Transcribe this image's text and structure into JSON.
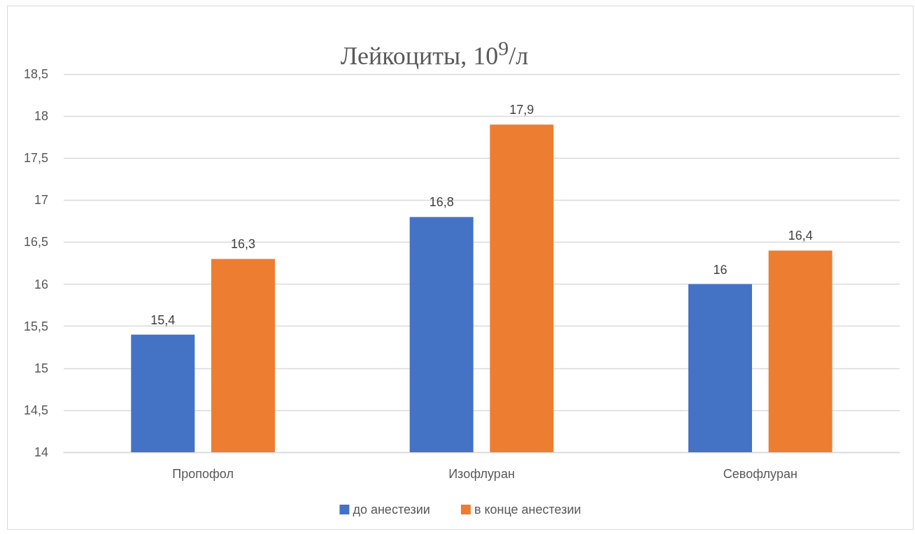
{
  "chart_data": {
    "type": "bar",
    "title": "Лейкоциты, 10$^{9}$/л",
    "categories": [
      "Пропофол",
      "Изофлуран",
      "Севофлуран"
    ],
    "series": [
      {
        "name": "до анестезии",
        "color": "#4472c4",
        "values": [
          15.4,
          16.8,
          16
        ],
        "value_labels": [
          "15,4",
          "16,8",
          "16"
        ]
      },
      {
        "name": "в конце анестезии",
        "color": "#ed7d31",
        "values": [
          16.3,
          17.9,
          16.4
        ],
        "value_labels": [
          "16,3",
          "17,9",
          "16,4"
        ]
      }
    ],
    "ylim": [
      14,
      18.5
    ],
    "yticks": [
      14,
      {
        "value": 14.5,
        "label": "14,5"
      },
      15,
      {
        "value": 15.5,
        "label": "15,5"
      },
      16,
      {
        "value": 16.5,
        "label": "16,5"
      },
      17,
      {
        "value": 17.5,
        "label": "17,5"
      },
      18,
      {
        "value": 18.5,
        "label": "18,5"
      }
    ],
    "grid": "y",
    "legend": "bottom"
  }
}
